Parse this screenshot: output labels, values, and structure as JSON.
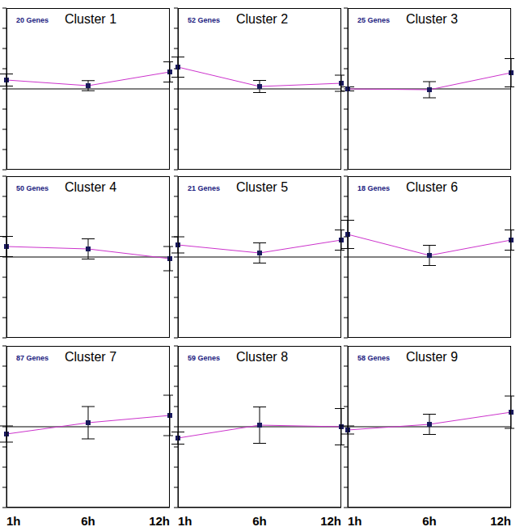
{
  "chart_data": [
    {
      "type": "line",
      "title": "Cluster 1",
      "annotations": [
        "20 Genes"
      ],
      "categories": [
        "1h",
        "6h",
        "12h"
      ],
      "values": [
        0.44,
        0.16,
        0.84
      ],
      "errors": [
        0.3,
        0.25,
        0.5
      ],
      "color": "#cc33cc",
      "marker": "square",
      "ylim": [
        -4,
        4
      ],
      "yticks": [
        -4,
        -3,
        -2,
        -1,
        0,
        1,
        2,
        3,
        4
      ],
      "baseline": 0,
      "tick_labels": false
    },
    {
      "type": "line",
      "title": "Cluster 2",
      "annotations": [
        "52 Genes"
      ],
      "categories": [
        "1h",
        "6h",
        "12h"
      ],
      "values": [
        1.08,
        0.12,
        0.28
      ],
      "errors": [
        0.5,
        0.3,
        0.4
      ],
      "color": "#cc33cc",
      "marker": "square",
      "ylim": [
        -4,
        4
      ],
      "yticks": [
        -4,
        -3,
        -2,
        -1,
        0,
        1,
        2,
        3,
        4
      ],
      "baseline": 0,
      "tick_labels": false
    },
    {
      "type": "line",
      "title": "Cluster 3",
      "annotations": [
        "25 Genes"
      ],
      "categories": [
        "1h",
        "6h",
        "12h"
      ],
      "values": [
        0.0,
        -0.04,
        0.8
      ],
      "errors": [
        0.1,
        0.4,
        0.7
      ],
      "color": "#cc33cc",
      "marker": "square",
      "ylim": [
        -4,
        4
      ],
      "yticks": [
        -4,
        -3,
        -2,
        -1,
        0,
        1,
        2,
        3,
        4
      ],
      "baseline": 0,
      "tick_labels": false
    },
    {
      "type": "line",
      "title": "Cluster 4",
      "annotations": [
        "50 Genes"
      ],
      "categories": [
        "1h",
        "6h",
        "12h"
      ],
      "values": [
        0.52,
        0.4,
        -0.08
      ],
      "errors": [
        0.5,
        0.5,
        0.6
      ],
      "color": "#cc33cc",
      "marker": "square",
      "ylim": [
        -4,
        4
      ],
      "yticks": [
        -4,
        -3,
        -2,
        -1,
        0,
        1,
        2,
        3,
        4
      ],
      "baseline": 0,
      "tick_labels": false
    },
    {
      "type": "line",
      "title": "Cluster 5",
      "annotations": [
        "21 Genes"
      ],
      "categories": [
        "1h",
        "6h",
        "12h"
      ],
      "values": [
        0.6,
        0.2,
        0.84
      ],
      "errors": [
        0.4,
        0.5,
        0.5
      ],
      "color": "#cc33cc",
      "marker": "square",
      "ylim": [
        -4,
        4
      ],
      "yticks": [
        -4,
        -3,
        -2,
        -1,
        0,
        1,
        2,
        3,
        4
      ],
      "baseline": 0,
      "tick_labels": false
    },
    {
      "type": "line",
      "title": "Cluster 6",
      "annotations": [
        "18 Genes"
      ],
      "categories": [
        "1h",
        "6h",
        "12h"
      ],
      "values": [
        1.12,
        0.08,
        0.84
      ],
      "errors": [
        0.7,
        0.5,
        0.5
      ],
      "color": "#cc33cc",
      "marker": "square",
      "ylim": [
        -4,
        4
      ],
      "yticks": [
        -4,
        -3,
        -2,
        -1,
        0,
        1,
        2,
        3,
        4
      ],
      "baseline": 0,
      "tick_labels": false
    },
    {
      "type": "line",
      "title": "Cluster 7",
      "annotations": [
        "87 Genes"
      ],
      "categories": [
        "1h",
        "6h",
        "12h"
      ],
      "values": [
        -0.36,
        0.2,
        0.56
      ],
      "errors": [
        0.4,
        0.8,
        1.0
      ],
      "color": "#cc33cc",
      "marker": "square",
      "ylim": [
        -4,
        4
      ],
      "yticks": [
        -4,
        -3,
        -2,
        -1,
        0,
        1,
        2,
        3,
        4
      ],
      "baseline": 0,
      "tick_labels": "x"
    },
    {
      "type": "line",
      "title": "Cluster 8",
      "annotations": [
        "59 Genes"
      ],
      "categories": [
        "1h",
        "6h",
        "12h"
      ],
      "values": [
        -0.56,
        0.08,
        0.0
      ],
      "errors": [
        0.3,
        0.9,
        0.9
      ],
      "color": "#cc33cc",
      "marker": "square",
      "ylim": [
        -4,
        4
      ],
      "yticks": [
        -4,
        -3,
        -2,
        -1,
        0,
        1,
        2,
        3,
        4
      ],
      "baseline": 0,
      "tick_labels": "x"
    },
    {
      "type": "line",
      "title": "Cluster 9",
      "annotations": [
        "58 Genes"
      ],
      "categories": [
        "1h",
        "6h",
        "12h"
      ],
      "values": [
        -0.16,
        0.12,
        0.72
      ],
      "errors": [
        0.2,
        0.5,
        0.8
      ],
      "color": "#cc33cc",
      "marker": "square",
      "ylim": [
        -4,
        4
      ],
      "yticks": [
        -4,
        -3,
        -2,
        -1,
        0,
        1,
        2,
        3,
        4
      ],
      "baseline": 0,
      "tick_labels": "x"
    }
  ]
}
